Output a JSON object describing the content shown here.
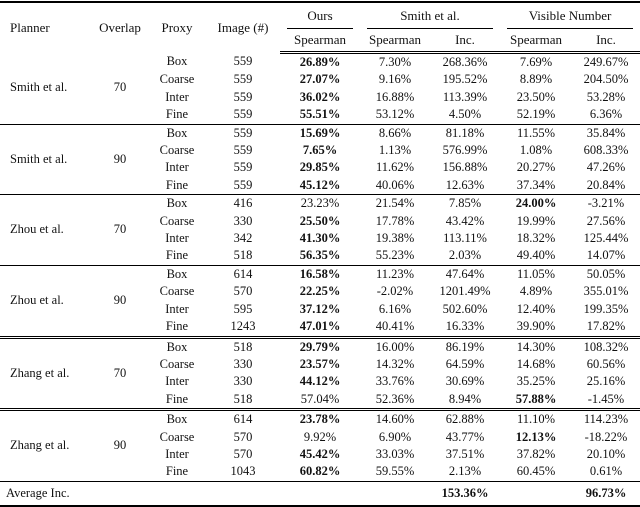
{
  "table": {
    "headers": {
      "planner": "Planner",
      "overlap": "Overlap",
      "proxy": "Proxy",
      "image": "Image (#)",
      "group_ours": "Ours",
      "group_smith": "Smith et al.",
      "group_visible": "Visible Number",
      "sub_spearman": "Spearman",
      "sub_inc": "Inc."
    },
    "column_keys": [
      "ours-spearman",
      "smith-spearman",
      "smith-inc",
      "visible-spearman",
      "visible-inc"
    ],
    "blocks": [
      {
        "planner": "Smith et al.",
        "overlap": "70",
        "separator": "none",
        "rows": [
          {
            "proxy": "Box",
            "image": "559",
            "values": [
              "26.89%",
              "7.30%",
              "268.36%",
              "7.69%",
              "249.67%"
            ],
            "bold": [
              0
            ]
          },
          {
            "proxy": "Coarse",
            "image": "559",
            "values": [
              "27.07%",
              "9.16%",
              "195.52%",
              "8.89%",
              "204.50%"
            ],
            "bold": [
              0
            ]
          },
          {
            "proxy": "Inter",
            "image": "559",
            "values": [
              "36.02%",
              "16.88%",
              "113.39%",
              "23.50%",
              "53.28%"
            ],
            "bold": [
              0
            ]
          },
          {
            "proxy": "Fine",
            "image": "559",
            "values": [
              "55.51%",
              "53.12%",
              "4.50%",
              "52.19%",
              "6.36%"
            ],
            "bold": [
              0
            ]
          }
        ]
      },
      {
        "planner": "Smith et al.",
        "overlap": "90",
        "separator": "single",
        "rows": [
          {
            "proxy": "Box",
            "image": "559",
            "values": [
              "15.69%",
              "8.66%",
              "81.18%",
              "11.55%",
              "35.84%"
            ],
            "bold": [
              0
            ]
          },
          {
            "proxy": "Coarse",
            "image": "559",
            "values": [
              "7.65%",
              "1.13%",
              "576.99%",
              "1.08%",
              "608.33%"
            ],
            "bold": [
              0
            ]
          },
          {
            "proxy": "Inter",
            "image": "559",
            "values": [
              "29.85%",
              "11.62%",
              "156.88%",
              "20.27%",
              "47.26%"
            ],
            "bold": [
              0
            ]
          },
          {
            "proxy": "Fine",
            "image": "559",
            "values": [
              "45.12%",
              "40.06%",
              "12.63%",
              "37.34%",
              "20.84%"
            ],
            "bold": [
              0
            ]
          }
        ]
      },
      {
        "planner": "Zhou et al.",
        "overlap": "70",
        "separator": "single",
        "rows": [
          {
            "proxy": "Box",
            "image": "416",
            "values": [
              "23.23%",
              "21.54%",
              "7.85%",
              "24.00%",
              "-3.21%"
            ],
            "bold": [
              3
            ]
          },
          {
            "proxy": "Coarse",
            "image": "330",
            "values": [
              "25.50%",
              "17.78%",
              "43.42%",
              "19.99%",
              "27.56%"
            ],
            "bold": [
              0
            ]
          },
          {
            "proxy": "Inter",
            "image": "342",
            "values": [
              "41.30%",
              "19.38%",
              "113.11%",
              "18.32%",
              "125.44%"
            ],
            "bold": [
              0
            ]
          },
          {
            "proxy": "Fine",
            "image": "518",
            "values": [
              "56.35%",
              "55.23%",
              "2.03%",
              "49.40%",
              "14.07%"
            ],
            "bold": [
              0
            ]
          }
        ]
      },
      {
        "planner": "Zhou et al.",
        "overlap": "90",
        "separator": "single",
        "rows": [
          {
            "proxy": "Box",
            "image": "614",
            "values": [
              "16.58%",
              "11.23%",
              "47.64%",
              "11.05%",
              "50.05%"
            ],
            "bold": [
              0
            ]
          },
          {
            "proxy": "Coarse",
            "image": "570",
            "values": [
              "22.25%",
              "-2.02%",
              "1201.49%",
              "4.89%",
              "355.01%"
            ],
            "bold": [
              0
            ]
          },
          {
            "proxy": "Inter",
            "image": "595",
            "values": [
              "37.12%",
              "6.16%",
              "502.60%",
              "12.40%",
              "199.35%"
            ],
            "bold": [
              0
            ]
          },
          {
            "proxy": "Fine",
            "image": "1243",
            "values": [
              "47.01%",
              "40.41%",
              "16.33%",
              "39.90%",
              "17.82%"
            ],
            "bold": [
              0
            ]
          }
        ]
      },
      {
        "planner": "Zhang et al.",
        "overlap": "70",
        "separator": "double",
        "rows": [
          {
            "proxy": "Box",
            "image": "518",
            "values": [
              "29.79%",
              "16.00%",
              "86.19%",
              "14.30%",
              "108.32%"
            ],
            "bold": [
              0
            ]
          },
          {
            "proxy": "Coarse",
            "image": "330",
            "values": [
              "23.57%",
              "14.32%",
              "64.59%",
              "14.68%",
              "60.56%"
            ],
            "bold": [
              0
            ]
          },
          {
            "proxy": "Inter",
            "image": "330",
            "values": [
              "44.12%",
              "33.76%",
              "30.69%",
              "35.25%",
              "25.16%"
            ],
            "bold": [
              0
            ]
          },
          {
            "proxy": "Fine",
            "image": "518",
            "values": [
              "57.04%",
              "52.36%",
              "8.94%",
              "57.88%",
              "-1.45%"
            ],
            "bold": [
              3
            ]
          }
        ]
      },
      {
        "planner": "Zhang et al.",
        "overlap": "90",
        "separator": "double",
        "rows": [
          {
            "proxy": "Box",
            "image": "614",
            "values": [
              "23.78%",
              "14.60%",
              "62.88%",
              "11.10%",
              "114.23%"
            ],
            "bold": [
              0
            ]
          },
          {
            "proxy": "Coarse",
            "image": "570",
            "values": [
              "9.92%",
              "6.90%",
              "43.77%",
              "12.13%",
              "-18.22%"
            ],
            "bold": [
              3
            ]
          },
          {
            "proxy": "Inter",
            "image": "570",
            "values": [
              "45.42%",
              "33.03%",
              "37.51%",
              "37.82%",
              "20.10%"
            ],
            "bold": [
              0
            ]
          },
          {
            "proxy": "Fine",
            "image": "1043",
            "values": [
              "60.82%",
              "59.55%",
              "2.13%",
              "60.45%",
              "0.61%"
            ],
            "bold": [
              0
            ]
          }
        ]
      }
    ],
    "footer": {
      "label": "Average Inc.",
      "smith_inc": "153.36%",
      "visible_inc": "96.73%"
    }
  }
}
